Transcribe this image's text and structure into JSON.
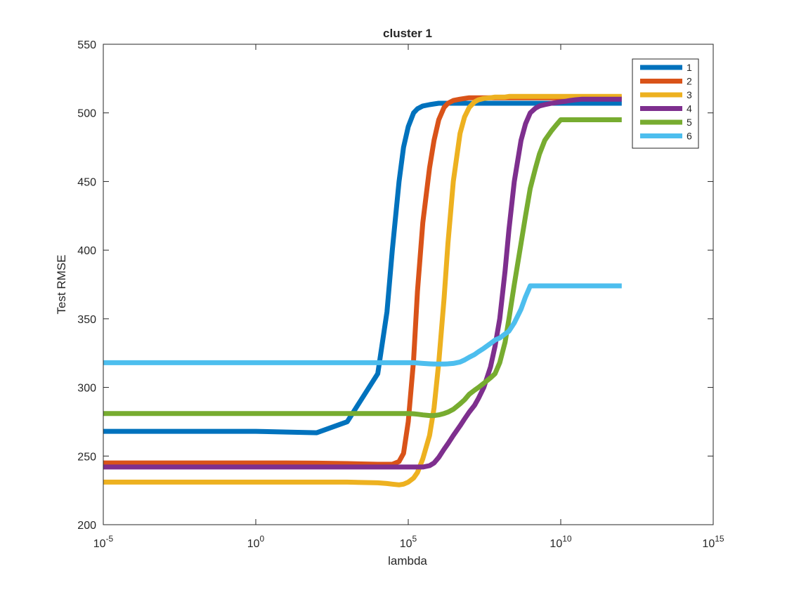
{
  "chart_data": {
    "type": "line",
    "title": "cluster 1",
    "xlabel": "lambda",
    "ylabel": "Test RMSE",
    "xscale": "log",
    "xlim": [
      1e-05,
      1000000000000000.0
    ],
    "ylim": [
      200,
      550
    ],
    "x_ticks": [
      {
        "base": "10",
        "exp": "-5",
        "value": 1e-05
      },
      {
        "base": "10",
        "exp": "0",
        "value": 1
      },
      {
        "base": "10",
        "exp": "5",
        "value": 100000
      },
      {
        "base": "10",
        "exp": "10",
        "value": 10000000000
      },
      {
        "base": "10",
        "exp": "15",
        "value": 1000000000000000.0
      }
    ],
    "y_ticks": [
      "200",
      "250",
      "300",
      "350",
      "400",
      "450",
      "500",
      "550"
    ],
    "grid": false,
    "legend_position": "top-right",
    "colors": [
      "#0072BD",
      "#D95319",
      "#EDB120",
      "#7E2F8E",
      "#77AC30",
      "#4DBEEE"
    ],
    "x": [
      1e-05,
      0.0001,
      0.001,
      0.01,
      0.1,
      1,
      10,
      100,
      1000,
      10000,
      20000,
      30000,
      50000,
      70000,
      100000,
      150000,
      200000,
      300000,
      500000,
      700000,
      1000000,
      1500000,
      2000000,
      3000000,
      5000000,
      7000000,
      10000000,
      15000000,
      20000000,
      30000000,
      50000000,
      70000000,
      100000000,
      150000000,
      200000000,
      300000000,
      500000000,
      700000000,
      1000000000,
      1500000000,
      2000000000,
      3000000000,
      5000000000,
      7000000000,
      10000000000,
      15000000000,
      20000000000,
      30000000000,
      50000000000,
      70000000000,
      100000000000,
      150000000000,
      200000000000,
      300000000000,
      500000000000,
      700000000000,
      1000000000000
    ],
    "series": [
      {
        "name": "1",
        "values": [
          268,
          268,
          268,
          268,
          268,
          268,
          267.5,
          267,
          275,
          310,
          355,
          400,
          450,
          475,
          490,
          500,
          503,
          505,
          506,
          506.5,
          507,
          507,
          507,
          507,
          507,
          507,
          507,
          507,
          507,
          507,
          507,
          507,
          507,
          507,
          507,
          507,
          507,
          507,
          507,
          507,
          507,
          507,
          507,
          507,
          507,
          507,
          507,
          507,
          507,
          507,
          507,
          507,
          507,
          507,
          507,
          507,
          507
        ]
      },
      {
        "name": "2",
        "values": [
          245,
          245,
          245,
          245,
          245,
          245,
          245,
          244.8,
          244.5,
          244,
          244,
          244,
          246,
          252,
          275,
          320,
          370,
          420,
          460,
          480,
          495,
          504,
          507,
          509,
          510,
          510.5,
          511,
          511,
          511,
          511,
          511,
          511,
          511,
          511,
          511,
          511,
          511,
          511,
          511,
          511,
          511,
          511,
          511,
          511,
          511,
          511,
          511,
          511,
          511,
          511,
          511,
          511,
          511,
          511,
          511,
          511,
          511
        ]
      },
      {
        "name": "3",
        "values": [
          231,
          231,
          231,
          231,
          231,
          231,
          231,
          231,
          231,
          230.5,
          230,
          229.5,
          229,
          229.5,
          231,
          234,
          238,
          248,
          265,
          285,
          318,
          365,
          405,
          450,
          485,
          497,
          504,
          508,
          509.5,
          510.5,
          511,
          511.5,
          511.5,
          511.5,
          512,
          512,
          512,
          512,
          512,
          512,
          512,
          512,
          512,
          512,
          512,
          512,
          512,
          512,
          512,
          512,
          512,
          512,
          512,
          512,
          512,
          512,
          512
        ]
      },
      {
        "name": "4",
        "values": [
          242,
          242,
          242,
          242,
          242,
          242,
          242,
          242,
          242,
          242,
          242,
          242,
          242,
          242,
          242,
          242,
          242,
          242,
          243,
          245,
          249,
          255,
          259,
          265,
          272,
          277,
          282,
          287,
          292,
          300,
          315,
          330,
          350,
          385,
          415,
          450,
          480,
          492,
          500,
          503.5,
          505,
          506,
          507,
          507.5,
          508,
          508.5,
          509,
          509.5,
          510,
          510,
          510,
          510,
          510,
          510,
          510,
          510,
          510
        ]
      },
      {
        "name": "5",
        "values": [
          281,
          281,
          281,
          281,
          281,
          281,
          281,
          281,
          281,
          281,
          281,
          281,
          281,
          281,
          281,
          280.8,
          280.5,
          280,
          279.5,
          279.5,
          280,
          281,
          282,
          284,
          288,
          291,
          295,
          298,
          300,
          303,
          307,
          310,
          318,
          333,
          350,
          375,
          405,
          425,
          445,
          460,
          470,
          480,
          487,
          491,
          495,
          495,
          495,
          495,
          495,
          495,
          495,
          495,
          495,
          495,
          495,
          495,
          495
        ]
      },
      {
        "name": "6",
        "values": [
          318,
          318,
          318,
          318,
          318,
          318,
          318,
          318,
          318,
          318,
          318,
          318,
          318,
          318,
          318,
          318,
          317.8,
          317.5,
          317.2,
          317,
          317,
          317,
          317.2,
          317.5,
          318.5,
          320,
          322,
          324,
          326,
          328.5,
          332,
          334.5,
          336,
          339,
          341,
          347,
          357,
          366,
          374,
          374,
          374,
          374,
          374,
          374,
          374,
          374,
          374,
          374,
          374,
          374,
          374,
          374,
          374,
          374,
          374,
          374,
          374
        ]
      }
    ]
  }
}
